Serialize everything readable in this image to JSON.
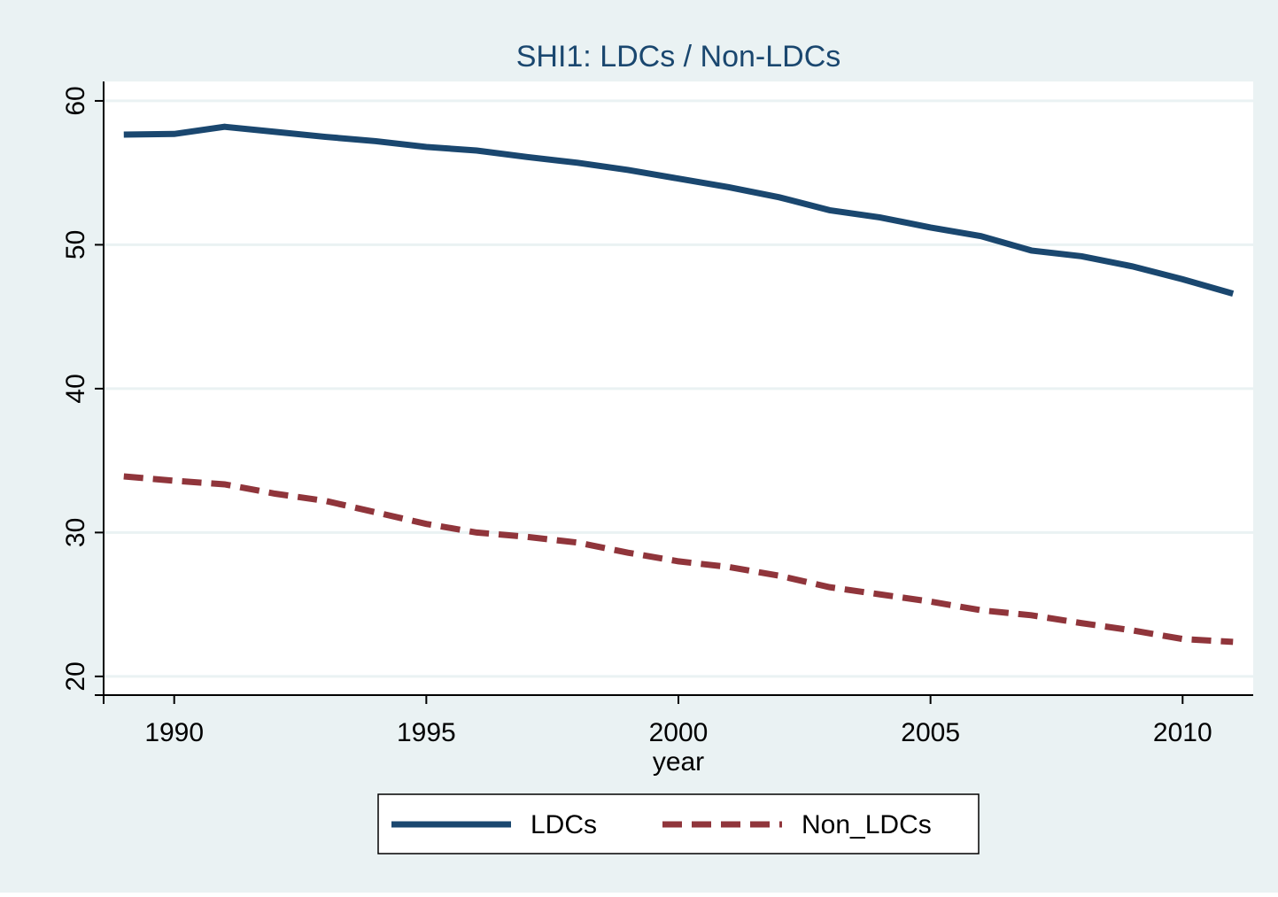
{
  "chart_data": {
    "type": "line",
    "title": "SHI1: LDCs / Non-LDCs",
    "x_label": "year",
    "x": [
      1989,
      1990,
      1991,
      1992,
      1993,
      1994,
      1995,
      1996,
      1997,
      1998,
      1999,
      2000,
      2001,
      2002,
      2003,
      2004,
      2005,
      2006,
      2007,
      2008,
      2009,
      2010,
      2011
    ],
    "series": [
      {
        "name": "LDCs",
        "color": "#1a476f",
        "dash": "solid",
        "values": [
          57.66,
          57.7,
          58.2,
          57.85,
          57.5,
          57.2,
          56.8,
          56.55,
          56.1,
          55.7,
          55.2,
          54.6,
          54.0,
          53.3,
          52.4,
          51.9,
          51.2,
          50.6,
          49.6,
          49.2,
          48.5,
          47.6,
          46.6
        ]
      },
      {
        "name": "Non_LDCs",
        "color": "#90353b",
        "dash": "dashed",
        "values": [
          33.9,
          33.6,
          33.35,
          32.7,
          32.2,
          31.4,
          30.6,
          30.0,
          29.7,
          29.3,
          28.6,
          28.0,
          27.6,
          27.0,
          26.2,
          25.7,
          25.2,
          24.6,
          24.25,
          23.7,
          23.2,
          22.6,
          22.4
        ]
      }
    ],
    "xlim": [
      1988.6,
      2011.4
    ],
    "ylim": [
      18.7,
      61.35
    ],
    "xticks": [
      1990,
      1995,
      2000,
      2005,
      2010
    ],
    "yticks": [
      20,
      30,
      40,
      50,
      60
    ],
    "grid": true,
    "legend": "bottom"
  }
}
